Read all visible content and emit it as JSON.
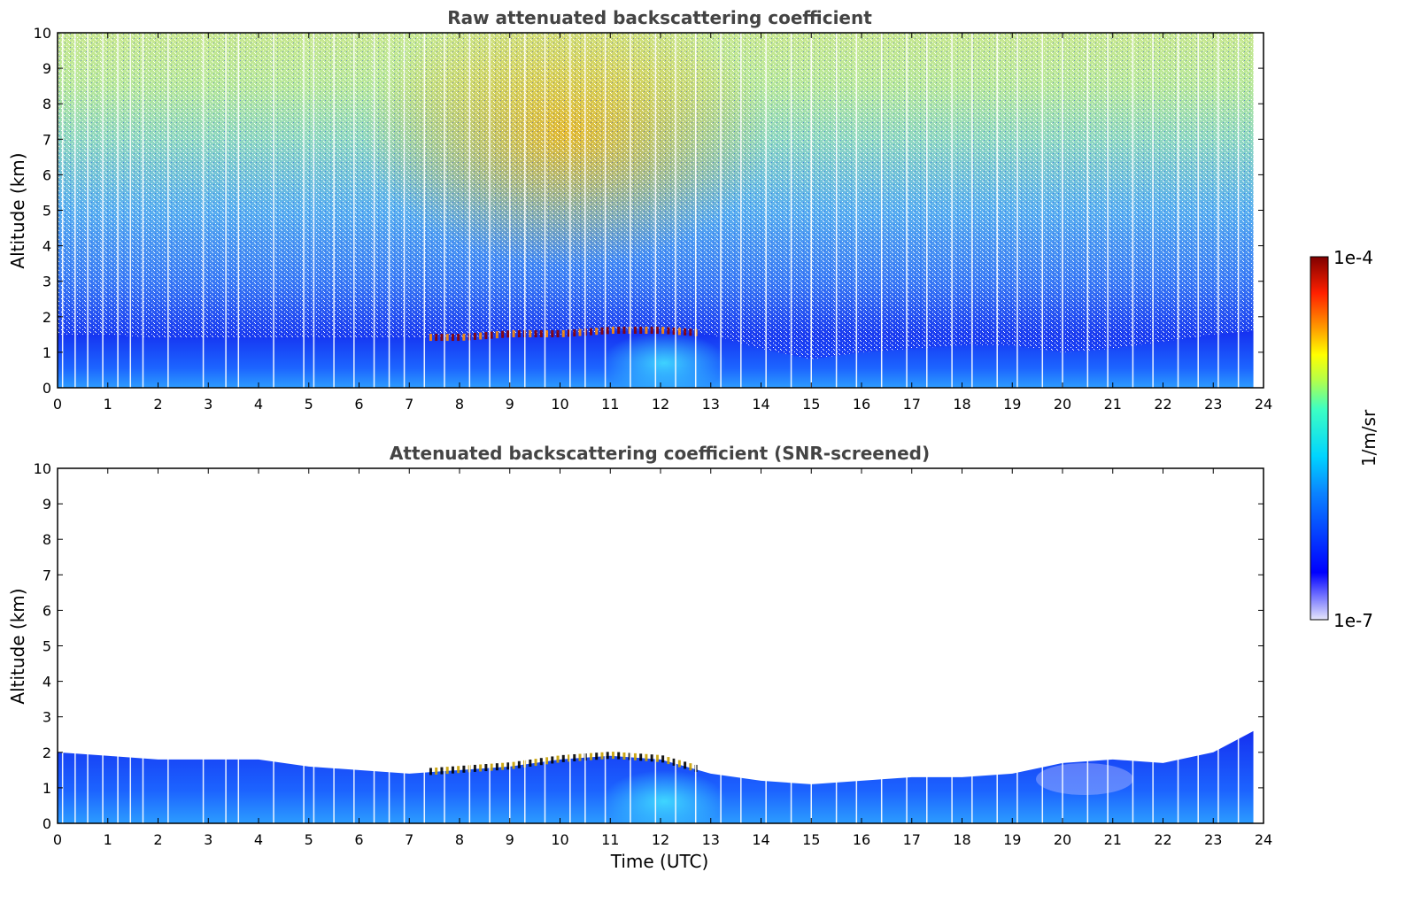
{
  "figure": {
    "colorbar": {
      "label": "1/m/sr",
      "max_label": "1e-4",
      "min_label": "1e-7",
      "scale": "log",
      "range": [
        1e-07,
        0.0001
      ],
      "colormap": "jet (white at low end)"
    },
    "xlabel": "Time (UTC)"
  },
  "chart_data": [
    {
      "type": "heatmap",
      "title": "Raw attenuated backscattering coefficient",
      "xlabel": "",
      "ylabel": "Altitude (km)",
      "xlim": [
        0,
        24
      ],
      "ylim": [
        0,
        10
      ],
      "x_ticks": [
        0,
        1,
        2,
        3,
        4,
        5,
        6,
        7,
        8,
        9,
        10,
        11,
        12,
        13,
        14,
        15,
        16,
        17,
        18,
        19,
        20,
        21,
        22,
        23,
        24
      ],
      "y_ticks": [
        0,
        1,
        2,
        3,
        4,
        5,
        6,
        7,
        8,
        9,
        10
      ],
      "data_extent_x": [
        0,
        23.8
      ],
      "boundary_layer_top_km": {
        "x": [
          0,
          1,
          2,
          3,
          4,
          5,
          6,
          7,
          8,
          9,
          10,
          11,
          12,
          13,
          14,
          15,
          16,
          17,
          18,
          19,
          20,
          21,
          22,
          23,
          23.8
        ],
        "y": [
          1.5,
          1.5,
          1.4,
          1.4,
          1.4,
          1.4,
          1.4,
          1.4,
          1.4,
          1.5,
          1.5,
          1.6,
          1.6,
          1.5,
          1.1,
          0.8,
          1.0,
          1.1,
          1.2,
          1.2,
          1.0,
          1.1,
          1.3,
          1.5,
          1.6
        ]
      }
    },
    {
      "type": "heatmap",
      "title": "Attenuated backscattering coefficient (SNR-screened)",
      "xlabel": "Time (UTC)",
      "ylabel": "Altitude (km)",
      "xlim": [
        0,
        24
      ],
      "ylim": [
        0,
        10
      ],
      "x_ticks": [
        0,
        1,
        2,
        3,
        4,
        5,
        6,
        7,
        8,
        9,
        10,
        11,
        12,
        13,
        14,
        15,
        16,
        17,
        18,
        19,
        20,
        21,
        22,
        23,
        24
      ],
      "y_ticks": [
        0,
        1,
        2,
        3,
        4,
        5,
        6,
        7,
        8,
        9,
        10
      ],
      "data_extent_x": [
        0,
        23.8
      ],
      "boundary_layer_top_km": {
        "x": [
          0,
          1,
          2,
          3,
          4,
          5,
          6,
          7,
          8,
          9,
          10,
          11,
          12,
          13,
          14,
          15,
          16,
          17,
          18,
          19,
          20,
          21,
          22,
          23,
          23.8
        ],
        "y": [
          2.0,
          1.9,
          1.8,
          1.8,
          1.8,
          1.6,
          1.5,
          1.4,
          1.5,
          1.6,
          1.8,
          1.9,
          1.8,
          1.4,
          1.2,
          1.1,
          1.2,
          1.3,
          1.3,
          1.4,
          1.7,
          1.8,
          1.7,
          2.0,
          2.6
        ]
      }
    }
  ]
}
